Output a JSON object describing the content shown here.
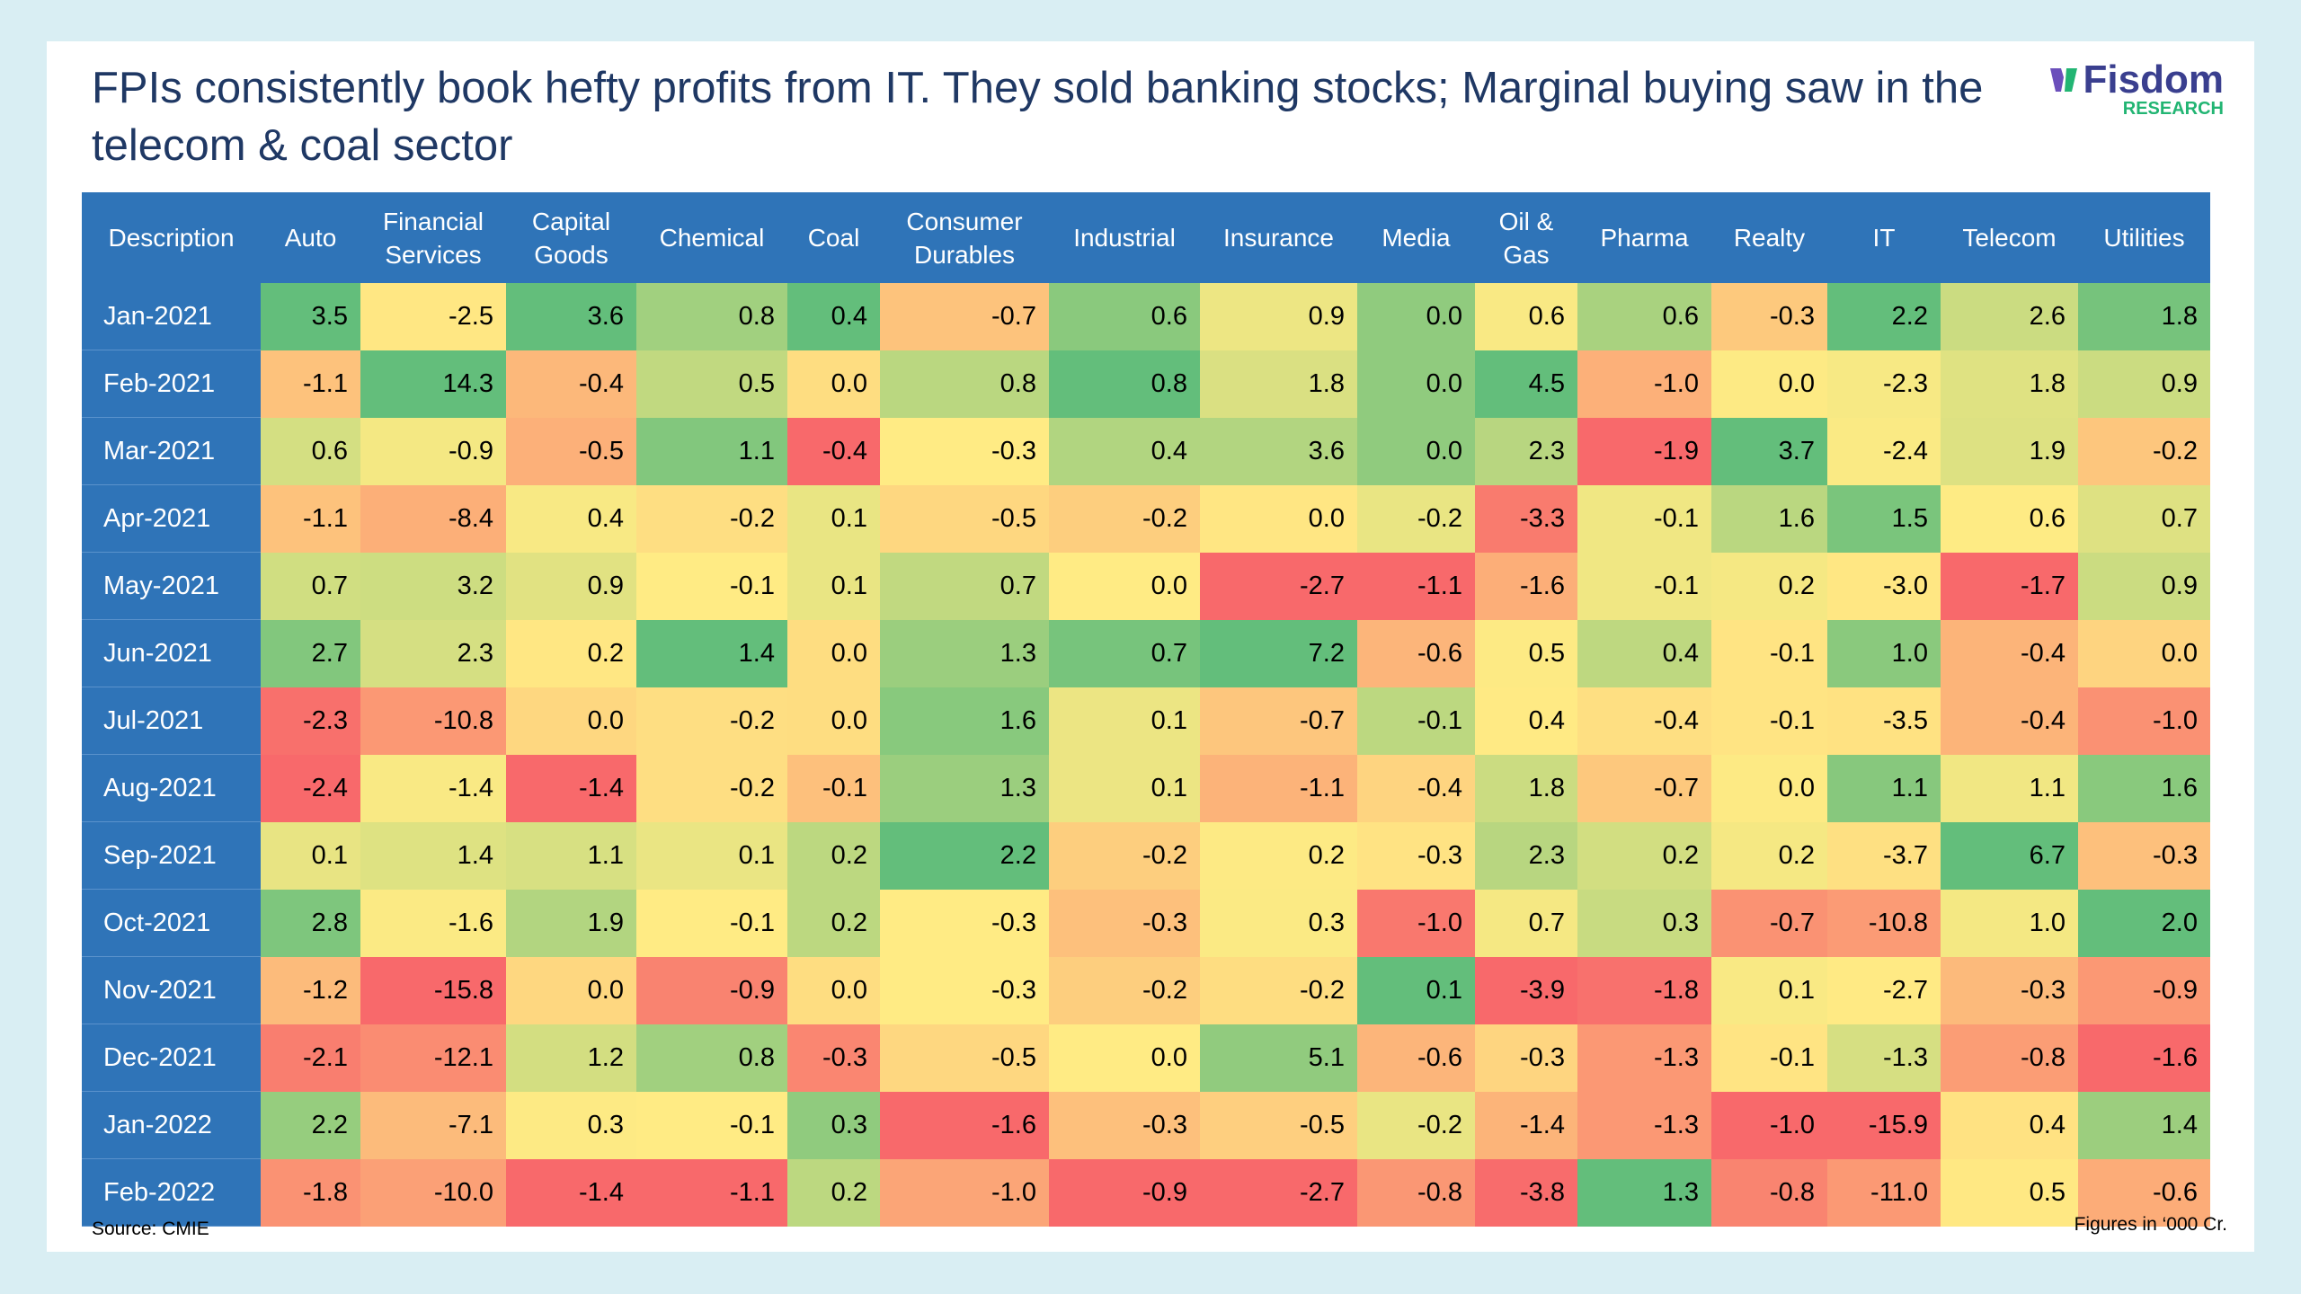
{
  "header": {
    "title": "FPIs consistently book hefty profits from IT. They sold banking stocks; Marginal buying saw in the telecom & coal sector"
  },
  "logo": {
    "name": "Fisdom",
    "tag": "RESEARCH"
  },
  "table": {
    "columns": [
      "Description",
      "Auto",
      "Financial Services",
      "Capital Goods",
      "Chemical",
      "Coal",
      "Consumer Durables",
      "Industrial",
      "Insurance",
      "Media",
      "Oil & Gas",
      "Pharma",
      "Realty",
      "IT",
      "Telecom",
      "Utilities"
    ],
    "rows": [
      {
        "label": "Jan-2021",
        "cells": [
          "3.5",
          "-2.5",
          "3.6",
          "0.8",
          "0.4",
          "-0.7",
          "0.6",
          "0.9",
          "0.0",
          "0.6",
          "0.6",
          "-0.3",
          "2.2",
          "2.6",
          "1.8"
        ]
      },
      {
        "label": "Feb-2021",
        "cells": [
          "-1.1",
          "14.3",
          "-0.4",
          "0.5",
          "0.0",
          "0.8",
          "0.8",
          "1.8",
          "0.0",
          "4.5",
          "-1.0",
          "0.0",
          "-2.3",
          "1.8",
          "0.9"
        ]
      },
      {
        "label": "Mar-2021",
        "cells": [
          "0.6",
          "-0.9",
          "-0.5",
          "1.1",
          "-0.4",
          "-0.3",
          "0.4",
          "3.6",
          "0.0",
          "2.3",
          "-1.9",
          "3.7",
          "-2.4",
          "1.9",
          "-0.2"
        ]
      },
      {
        "label": "Apr-2021",
        "cells": [
          "-1.1",
          "-8.4",
          "0.4",
          "-0.2",
          "0.1",
          "-0.5",
          "-0.2",
          "0.0",
          "-0.2",
          "-3.3",
          "-0.1",
          "1.6",
          "1.5",
          "0.6",
          "0.7"
        ]
      },
      {
        "label": "May-2021",
        "cells": [
          "0.7",
          "3.2",
          "0.9",
          "-0.1",
          "0.1",
          "0.7",
          "0.0",
          "-2.7",
          "-1.1",
          "-1.6",
          "-0.1",
          "0.2",
          "-3.0",
          "-1.7",
          "0.9"
        ]
      },
      {
        "label": "Jun-2021",
        "cells": [
          "2.7",
          "2.3",
          "0.2",
          "1.4",
          "0.0",
          "1.3",
          "0.7",
          "7.2",
          "-0.6",
          "0.5",
          "0.4",
          "-0.1",
          "1.0",
          "-0.4",
          "0.0"
        ]
      },
      {
        "label": "Jul-2021",
        "cells": [
          "-2.3",
          "-10.8",
          "0.0",
          "-0.2",
          "0.0",
          "1.6",
          "0.1",
          "-0.7",
          "-0.1",
          "0.4",
          "-0.4",
          "-0.1",
          "-3.5",
          "-0.4",
          "-1.0"
        ]
      },
      {
        "label": "Aug-2021",
        "cells": [
          "-2.4",
          "-1.4",
          "-1.4",
          "-0.2",
          "-0.1",
          "1.3",
          "0.1",
          "-1.1",
          "-0.4",
          "1.8",
          "-0.7",
          "0.0",
          "1.1",
          "1.1",
          "1.6"
        ]
      },
      {
        "label": "Sep-2021",
        "cells": [
          "0.1",
          "1.4",
          "1.1",
          "0.1",
          "0.2",
          "2.2",
          "-0.2",
          "0.2",
          "-0.3",
          "2.3",
          "0.2",
          "0.2",
          "-3.7",
          "6.7",
          "-0.3"
        ]
      },
      {
        "label": "Oct-2021",
        "cells": [
          "2.8",
          "-1.6",
          "1.9",
          "-0.1",
          "0.2",
          "-0.3",
          "-0.3",
          "0.3",
          "-1.0",
          "0.7",
          "0.3",
          "-0.7",
          "-10.8",
          "1.0",
          "2.0"
        ]
      },
      {
        "label": "Nov-2021",
        "cells": [
          "-1.2",
          "-15.8",
          "0.0",
          "-0.9",
          "0.0",
          "-0.3",
          "-0.2",
          "-0.2",
          "0.1",
          "-3.9",
          "-1.8",
          "0.1",
          "-2.7",
          "-0.3",
          "-0.9"
        ]
      },
      {
        "label": "Dec-2021",
        "cells": [
          "-2.1",
          "-12.1",
          "1.2",
          "0.8",
          "-0.3",
          "-0.5",
          "0.0",
          "5.1",
          "-0.6",
          "-0.3",
          "-1.3",
          "-0.1",
          "-1.3",
          "-0.8",
          "-1.6"
        ]
      },
      {
        "label": "Jan-2022",
        "cells": [
          "2.2",
          "-7.1",
          "0.3",
          "-0.1",
          "0.3",
          "-1.6",
          "-0.3",
          "-0.5",
          "-0.2",
          "-1.4",
          "-1.3",
          "-1.0",
          "-15.9",
          "0.4",
          "1.4"
        ]
      },
      {
        "label": "Feb-2022",
        "cells": [
          "-1.8",
          "-10.0",
          "-1.4",
          "-1.1",
          "0.2",
          "-1.0",
          "-0.9",
          "-2.7",
          "-0.8",
          "-3.8",
          "1.3",
          "-0.8",
          "-11.0",
          "0.5",
          "-0.6"
        ]
      }
    ]
  },
  "footer": {
    "source": "Source: CMIE",
    "units": "Figures in ‘000 Cr."
  }
}
